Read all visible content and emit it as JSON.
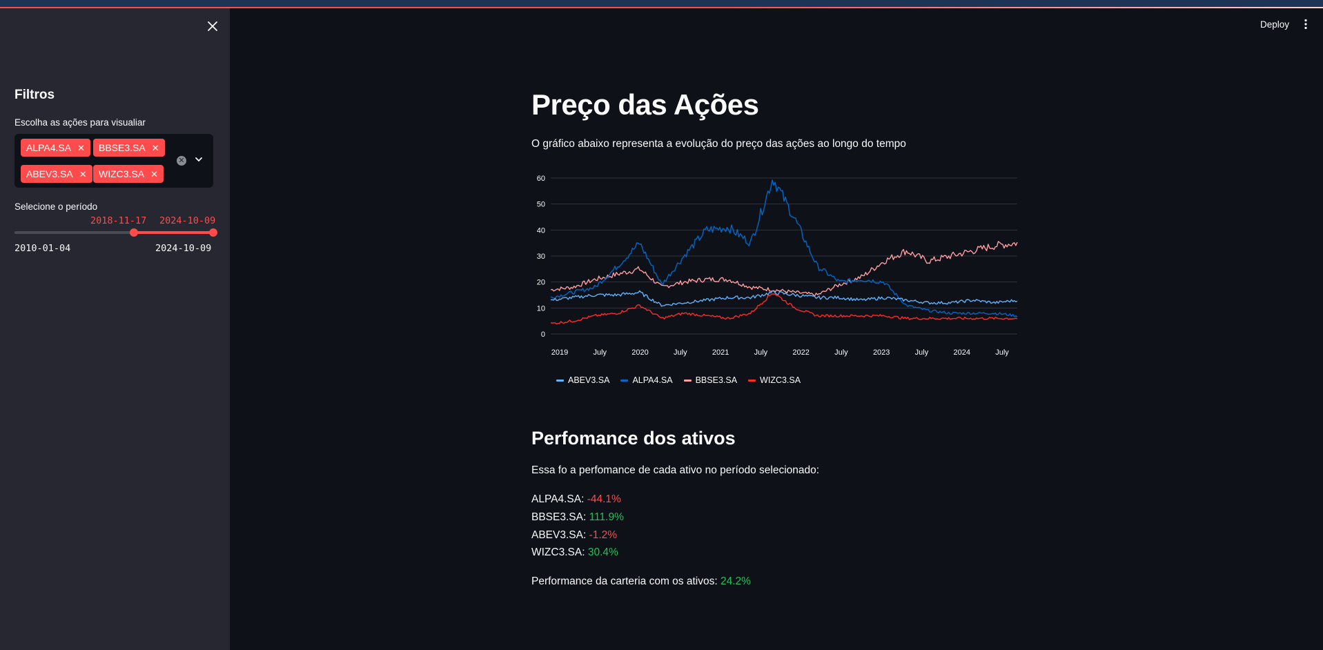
{
  "sidebar": {
    "title": "Filtros",
    "stocks_label": "Escolha as ações para visualiar",
    "selected_tags": [
      "ALPA4.SA",
      "BBSE3.SA",
      "ABEV3.SA",
      "WIZC3.SA"
    ],
    "period_label": "Selecione o período",
    "slider": {
      "selected_start": "2018-11-17",
      "selected_end": "2024-10-09",
      "min": "2010-01-04",
      "max": "2024-10-09"
    }
  },
  "header": {
    "deploy_label": "Deploy"
  },
  "main": {
    "title": "Preço das Ações",
    "subtitle": "O gráfico abaixo representa a evolução do preço das ações ao longo do tempo",
    "performance_title": "Perfomance dos ativos",
    "performance_intro": "Essa fo a perfomance de cada ativo no período selecionado:",
    "performance_rows": [
      {
        "ticker": "ALPA4.SA:",
        "value": "-44.1%"
      },
      {
        "ticker": "BBSE3.SA:",
        "value": "111.9%"
      },
      {
        "ticker": "ABEV3.SA:",
        "value": "-1.2%"
      },
      {
        "ticker": "WIZC3.SA:",
        "value": "30.4%"
      }
    ],
    "portfolio_label": "Performance da carteria com os ativos:",
    "portfolio_value": "24.2%"
  },
  "colors": {
    "accent": "#ff4b4b",
    "positive": "#21c354",
    "ABEV3": "#60b4ff",
    "ALPA4": "#0068c9",
    "BBSE3": "#ff9ea2",
    "WIZC3": "#ff2b2b"
  },
  "chart_data": {
    "type": "line",
    "title": "",
    "xlabel": "",
    "ylabel": "",
    "ylim": [
      0,
      60
    ],
    "yticks": [
      "0",
      "10",
      "20",
      "30",
      "40",
      "50",
      "60"
    ],
    "xticks": [
      "2019",
      "July",
      "2020",
      "July",
      "2021",
      "July",
      "2022",
      "July",
      "2023",
      "July",
      "2024",
      "July"
    ],
    "x": [
      "2018-11",
      "2019-03",
      "2019-07",
      "2019-11",
      "2020-02",
      "2020-03",
      "2020-07",
      "2020-11",
      "2021-02",
      "2021-05",
      "2021-07",
      "2021-09",
      "2021-12",
      "2022-03",
      "2022-07",
      "2022-11",
      "2023-03",
      "2023-07",
      "2023-11",
      "2024-03",
      "2024-07",
      "2024-10"
    ],
    "series": [
      {
        "name": "ABEV3.SA",
        "values": [
          13,
          14,
          15,
          15,
          16,
          11,
          12,
          13,
          14,
          14,
          16,
          15,
          14,
          14,
          13,
          14,
          13,
          12,
          12,
          13,
          12,
          13
        ]
      },
      {
        "name": "ALPA4.SA",
        "values": [
          14,
          16,
          18,
          26,
          35,
          19,
          30,
          40,
          41,
          35,
          60,
          44,
          26,
          20,
          21,
          20,
          11,
          9,
          8,
          8,
          8,
          7
        ]
      },
      {
        "name": "BBSE3.SA",
        "values": [
          17,
          18,
          21,
          23,
          25,
          18,
          20,
          21,
          21,
          18,
          17,
          16,
          15,
          19,
          22,
          28,
          32,
          28,
          30,
          32,
          34,
          35
        ]
      },
      {
        "name": "WIZC3.SA",
        "values": [
          4,
          5,
          7,
          8,
          11,
          6,
          8,
          7,
          6,
          8,
          16,
          10,
          7,
          7,
          7,
          7,
          6,
          6,
          6,
          6,
          6,
          6
        ]
      }
    ],
    "legend": "bottom-left"
  }
}
